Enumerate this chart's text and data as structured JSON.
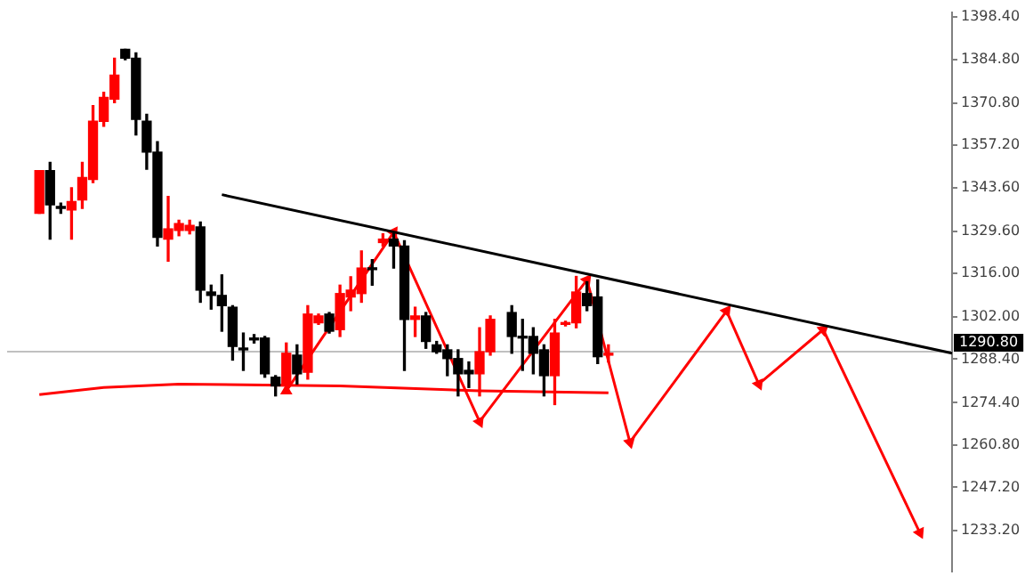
{
  "chart_data": {
    "type": "candlestick",
    "categories": [
      null,
      null,
      null,
      null,
      null,
      null,
      null,
      null,
      null,
      null,
      null,
      null,
      null,
      null,
      null,
      null,
      null,
      null,
      null,
      null,
      null,
      null,
      null,
      null,
      null,
      null,
      null,
      null,
      null,
      null,
      null,
      null,
      null,
      null,
      null,
      null,
      null,
      null,
      null,
      null,
      null,
      null,
      null,
      null,
      null,
      null,
      null,
      null,
      null,
      null,
      null,
      null,
      null,
      null,
      null,
      null,
      null,
      null,
      null,
      null,
      null,
      null,
      null,
      null,
      null,
      null,
      null,
      null,
      null,
      null,
      null,
      null,
      null,
      null,
      null,
      null,
      null,
      null,
      null,
      null,
      null,
      null,
      null,
      null,
      null,
      null,
      null,
      null,
      null
    ],
    "ohlc": [
      null,
      null,
      null,
      [
        1335.3,
        1349.0,
        1335.3,
        1349.0
      ],
      [
        1349.0,
        1351.7,
        1327.0,
        1338.0
      ],
      [
        1337.5,
        1338.6,
        1335.3,
        1336.9
      ],
      [
        1336.4,
        1343.5,
        1327.0,
        1339.1
      ],
      [
        1339.6,
        1351.7,
        1336.9,
        1346.8
      ],
      [
        1346.2,
        1369.9,
        1345.2,
        1364.9
      ],
      [
        1364.9,
        1374.2,
        1363.3,
        1372.6
      ],
      [
        1372.0,
        1385.2,
        1370.9,
        1379.7
      ],
      [
        1388.0,
        1388.0,
        1384.7,
        1385.2
      ],
      [
        1385.2,
        1386.9,
        1360.5,
        1365.5
      ],
      [
        1364.9,
        1367.1,
        1349.5,
        1355.0
      ],
      [
        1355.0,
        1358.3,
        1324.8,
        1327.6
      ],
      [
        1327.0,
        1340.7,
        1319.9,
        1330.3
      ],
      [
        1329.8,
        1333.1,
        1328.1,
        1332.0
      ],
      [
        1329.8,
        1333.1,
        1328.7,
        1331.4
      ],
      [
        1330.9,
        1332.5,
        1306.7,
        1310.6
      ],
      [
        1310.0,
        1312.2,
        1304.5,
        1308.9
      ],
      [
        1308.9,
        1315.5,
        1297.4,
        1305.6
      ],
      [
        1305.1,
        1305.6,
        1288.1,
        1292.5
      ],
      [
        1291.9,
        1296.8,
        1284.8,
        1291.4
      ],
      [
        1295.2,
        1296.3,
        1293.6,
        1294.6
      ],
      [
        1295.2,
        1295.7,
        1282.6,
        1283.7
      ],
      [
        1282.6,
        1283.1,
        1276.6,
        1279.8
      ],
      [
        1279.8,
        1293.6,
        1278.2,
        1290.3
      ],
      [
        1289.7,
        1293.0,
        1280.4,
        1283.7
      ],
      [
        1284.2,
        1305.6,
        1282.0,
        1302.9
      ],
      [
        1300.1,
        1302.9,
        1299.6,
        1302.3
      ],
      [
        1302.9,
        1303.4,
        1296.8,
        1297.4
      ],
      [
        1297.9,
        1312.2,
        1295.7,
        1309.5
      ],
      [
        1308.4,
        1314.9,
        1304.0,
        1310.6
      ],
      [
        1309.5,
        1323.2,
        1306.7,
        1317.7
      ],
      [
        1317.7,
        1320.4,
        1312.2,
        1317.2
      ],
      [
        1325.9,
        1328.7,
        1324.8,
        1327.0
      ],
      [
        1327.0,
        1328.7,
        1317.7,
        1324.8
      ],
      [
        1324.8,
        1326.5,
        1284.8,
        1301.2
      ],
      [
        1301.2,
        1305.1,
        1295.7,
        1302.3
      ],
      [
        1302.3,
        1303.4,
        1291.9,
        1294.1
      ],
      [
        1293.0,
        1294.1,
        1290.3,
        1290.8
      ],
      [
        1291.4,
        1293.0,
        1283.1,
        1288.6
      ],
      [
        1288.6,
        1291.4,
        1276.6,
        1283.7
      ],
      [
        1284.8,
        1287.5,
        1279.3,
        1283.7
      ],
      [
        1283.7,
        1298.5,
        1276.6,
        1290.8
      ],
      [
        1290.8,
        1302.3,
        1289.7,
        1301.2
      ],
      null,
      [
        1303.4,
        1305.6,
        1290.3,
        1295.7
      ],
      [
        1295.7,
        1301.2,
        1284.8,
        1295.2
      ],
      [
        1295.7,
        1298.5,
        1283.7,
        1290.3
      ],
      [
        1291.4,
        1293.0,
        1276.6,
        1283.1
      ],
      [
        1283.1,
        1301.2,
        1273.8,
        1296.8
      ],
      [
        1299.6,
        1300.6,
        1299.1,
        1300.1
      ],
      [
        1300.1,
        1315.0,
        1298.5,
        1310.0
      ],
      [
        1309.5,
        1313.3,
        1304.0,
        1305.6
      ],
      [
        1308.4,
        1313.9,
        1287.0,
        1289.2
      ],
      [
        1289.7,
        1293.0,
        1287.5,
        1290.3
      ],
      null,
      null,
      null,
      null,
      null,
      null,
      null,
      null,
      null,
      null,
      null,
      null,
      null,
      null,
      null,
      null,
      null,
      null,
      null,
      null,
      null,
      null,
      null,
      null,
      null,
      null,
      null,
      null,
      null,
      null,
      null,
      null
    ],
    "colors": [
      null,
      null,
      null,
      "#ff0000",
      "#000000",
      "#000000",
      "#ff0000",
      "#ff0000",
      "#ff0000",
      "#ff0000",
      "#ff0000",
      "#000000",
      "#000000",
      "#000000",
      "#000000",
      "#ff0000",
      "#ff0000",
      "#ff0000",
      "#000000",
      "#000000",
      "#000000",
      "#000000",
      "#000000",
      "#000000",
      "#000000",
      "#000000",
      "#ff0000",
      "#000000",
      "#ff0000",
      "#ff0000",
      "#000000",
      "#ff0000",
      "#ff0000",
      "#ff0000",
      "#000000",
      "#ff0000",
      "#000000",
      "#000000",
      "#ff0000",
      "#000000",
      "#000000",
      "#000000",
      "#000000",
      "#000000",
      "#ff0000",
      "#ff0000",
      null,
      "#000000",
      "#000000",
      "#000000",
      "#000000",
      "#ff0000",
      "#ff0000",
      "#ff0000",
      "#000000",
      "#000000",
      "#ff0000",
      null,
      null,
      null,
      null,
      null,
      null,
      null,
      null,
      null,
      null,
      null,
      null,
      null,
      null,
      null,
      null,
      null,
      null,
      null,
      null,
      null,
      null,
      null,
      null,
      null,
      null,
      null,
      null,
      null,
      null,
      null,
      null
    ],
    "series": [
      {
        "type": "line",
        "color": "#000000",
        "values": [
          null,
          null,
          null,
          null,
          null,
          null,
          null,
          null,
          null,
          null,
          null,
          null,
          null,
          null,
          null,
          null,
          null,
          null,
          null,
          null,
          1341.3,
          null,
          null,
          null,
          null,
          null,
          null,
          null,
          null,
          null,
          null,
          null,
          null,
          null,
          null,
          null,
          null,
          null,
          null,
          null,
          null,
          null,
          null,
          null,
          null,
          null,
          null,
          null,
          null,
          null,
          null,
          null,
          null,
          null,
          null,
          null,
          null,
          null,
          null,
          null,
          null,
          null,
          null,
          null,
          null,
          null,
          null,
          null,
          null,
          null,
          null,
          null,
          null,
          null,
          null,
          null,
          null,
          null,
          null,
          null,
          null,
          null,
          null,
          null,
          null,
          null,
          null,
          null,
          1290.3
        ]
      },
      {
        "type": "line",
        "color": "#ff0000",
        "values": [
          null,
          null,
          null,
          1277.0,
          null,
          null,
          null,
          null,
          null,
          1279.3,
          null,
          null,
          null,
          null,
          null,
          null,
          1280.4,
          null,
          null,
          null,
          null,
          null,
          null,
          null,
          null,
          null,
          null,
          null,
          null,
          null,
          null,
          1279.8,
          null,
          null,
          null,
          null,
          null,
          null,
          null,
          null,
          null,
          null,
          null,
          null,
          1278.2,
          null,
          null,
          null,
          null,
          null,
          null,
          null,
          null,
          null,
          null,
          null,
          1277.6,
          null,
          null,
          null,
          null,
          null,
          null,
          null,
          null,
          null,
          null,
          null,
          null,
          null,
          null,
          null,
          null,
          null,
          null,
          null,
          null,
          null,
          null,
          null,
          null,
          null,
          null,
          null,
          null,
          null,
          null,
          null,
          null
        ]
      },
      {
        "type": "line",
        "color": "#ff0000",
        "marker": "triangle",
        "values": [
          null,
          null,
          null,
          null,
          null,
          null,
          null,
          null,
          null,
          null,
          null,
          null,
          null,
          null,
          null,
          null,
          null,
          null,
          null,
          null,
          null,
          null,
          null,
          null,
          null,
          null,
          1278.2,
          null,
          null,
          null,
          null,
          null,
          null,
          null,
          null,
          null,
          1329.2,
          null,
          null,
          null,
          null,
          null,
          null,
          null,
          1268.3,
          null,
          null,
          null,
          null,
          null,
          null,
          null,
          null,
          null,
          1313.9,
          null,
          null,
          null,
          1261.7,
          null,
          null,
          null,
          null,
          null,
          null,
          null,
          null,
          1303.9,
          null,
          null,
          1280.4,
          null,
          null,
          null,
          null,
          null,
          1297.9,
          null,
          null,
          null,
          null,
          null,
          null,
          null,
          null,
          1232.6,
          null,
          null,
          null
        ]
      }
    ],
    "ylim": [
      1220,
      1400
    ],
    "yticks": [
      {
        "value": 1398.4,
        "label": "1398.40"
      },
      {
        "value": 1384.8,
        "label": "1384.80"
      },
      {
        "value": 1370.8,
        "label": "1370.80"
      },
      {
        "value": 1357.2,
        "label": "1357.20"
      },
      {
        "value": 1343.6,
        "label": "1343.60"
      },
      {
        "value": 1329.6,
        "label": "1329.60"
      },
      {
        "value": 1316.0,
        "label": "1316.00"
      },
      {
        "value": 1302.0,
        "label": "1302.00"
      },
      {
        "value": 1288.4,
        "label": "1288.40"
      },
      {
        "value": 1274.4,
        "label": "1274.40"
      },
      {
        "value": 1260.8,
        "label": "1260.80"
      },
      {
        "value": 1247.2,
        "label": "1247.20"
      },
      {
        "value": 1233.2,
        "label": "1233.20"
      }
    ],
    "ref_lines": [
      {
        "axis": "y",
        "value": 1290.8,
        "label": "1290.80",
        "color": "#c0c0c0"
      }
    ],
    "tick_labels": "y",
    "grid": false,
    "legend": false,
    "marker": "none",
    "line_style": "solid"
  }
}
